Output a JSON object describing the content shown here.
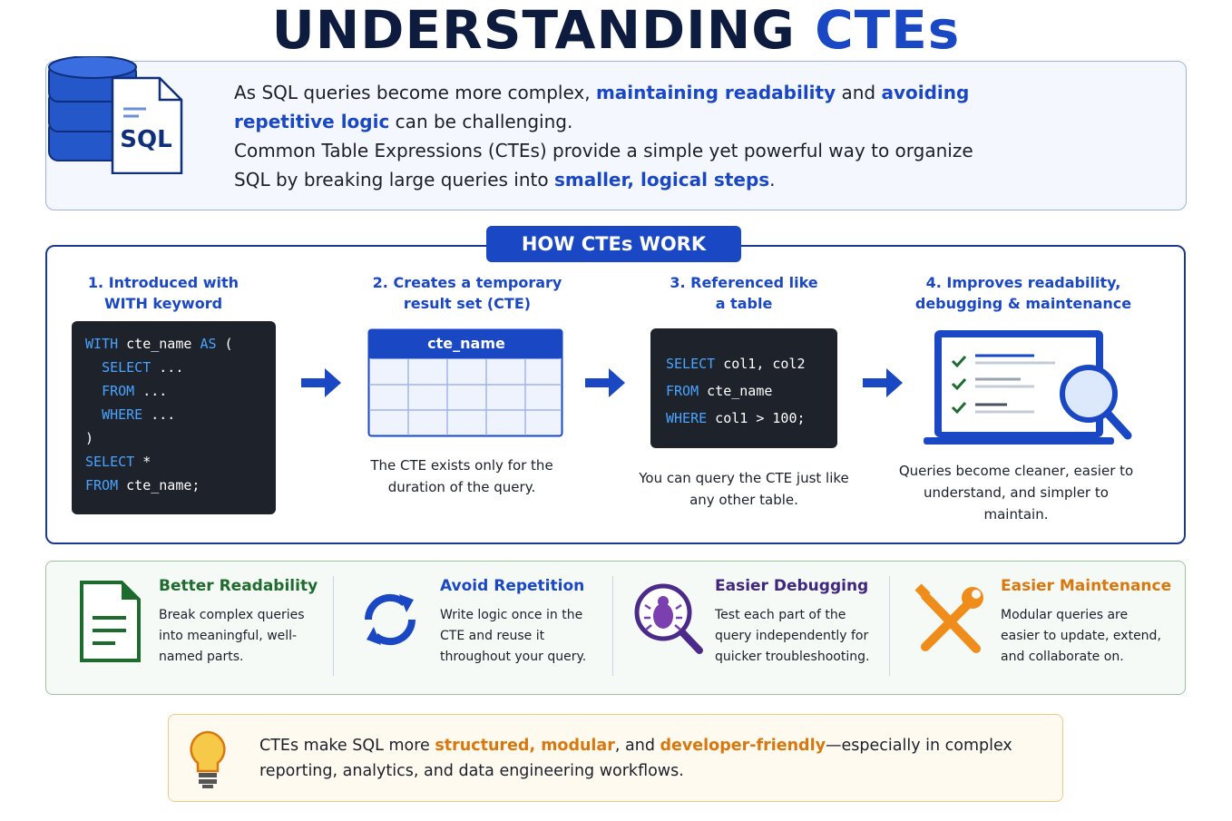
{
  "title": {
    "main": "UNDERSTANDING",
    "accent": "CTEs"
  },
  "intro": {
    "icon_label": "SQL",
    "paragraphs": [
      [
        {
          "text": "As SQL queries become more complex, ",
          "em": false
        },
        {
          "text": "maintaining readability",
          "em": true
        },
        {
          "text": " and ",
          "em": false
        },
        {
          "text": "avoiding repetitive logic",
          "em": true
        },
        {
          "text": " can be challenging.",
          "em": false
        }
      ],
      [
        {
          "text": "Common Table Expressions (CTEs) provide a simple yet powerful way to organize SQL by breaking large queries into ",
          "em": false
        },
        {
          "text": "smaller, logical steps",
          "em": true
        },
        {
          "text": ".",
          "em": false
        }
      ]
    ]
  },
  "how": {
    "badge": "HOW CTEs WORK",
    "steps": [
      {
        "heading": [
          "1. Introduced with",
          "WITH keyword"
        ],
        "code": [
          [
            {
              "text": "WITH",
              "kw": true
            },
            {
              "text": " cte_name ",
              "kw": false
            },
            {
              "text": "AS",
              "kw": true
            },
            {
              "text": " (",
              "kw": false
            }
          ],
          [
            {
              "text": "  ",
              "kw": false
            },
            {
              "text": "SELECT",
              "kw": true
            },
            {
              "text": " ...",
              "kw": false
            }
          ],
          [
            {
              "text": "  ",
              "kw": false
            },
            {
              "text": "FROM",
              "kw": true
            },
            {
              "text": " ...",
              "kw": false
            }
          ],
          [
            {
              "text": "  ",
              "kw": false
            },
            {
              "text": "WHERE",
              "kw": true
            },
            {
              "text": " ...",
              "kw": false
            }
          ],
          [
            {
              "text": ")",
              "kw": false
            }
          ],
          [
            {
              "text": "SELECT",
              "kw": true
            },
            {
              "text": " *",
              "kw": false
            }
          ],
          [
            {
              "text": "FROM",
              "kw": true
            },
            {
              "text": " cte_name;",
              "kw": false
            }
          ]
        ]
      },
      {
        "heading": [
          "2. Creates a temporary",
          "result set (CTE)"
        ],
        "table_name": "cte_name",
        "caption": "The CTE exists only for the duration of the query."
      },
      {
        "heading": [
          "3. Referenced like",
          "a table"
        ],
        "code": [
          [
            {
              "text": "SELECT",
              "kw": true
            },
            {
              "text": " col1, col2",
              "kw": false
            }
          ],
          [
            {
              "text": "FROM",
              "kw": true
            },
            {
              "text": " cte_name",
              "kw": false
            }
          ],
          [
            {
              "text": "WHERE",
              "kw": true
            },
            {
              "text": " col1 > 100;",
              "kw": false
            }
          ]
        ],
        "caption": "You can query the CTE just like any other table."
      },
      {
        "heading": [
          "4. Improves readability,",
          "debugging & maintenance"
        ],
        "caption": "Queries become cleaner, easier to understand, and simpler to maintain."
      }
    ]
  },
  "benefits": [
    {
      "title": "Better Readability",
      "text": "Break complex queries into meaningful, well-named parts.",
      "color": "#1e6b2e"
    },
    {
      "title": "Avoid Repetition",
      "text": "Write logic once in the CTE and reuse it throughout your query.",
      "color": "#1a47c4"
    },
    {
      "title": "Easier Debugging",
      "text": "Test each part of the query independently for quicker troubleshooting.",
      "color": "#3f2680"
    },
    {
      "title": "Easier Maintenance",
      "text": "Modular queries are easier to update, extend, and collaborate on.",
      "color": "#d9770f"
    }
  ],
  "footer": [
    {
      "text": "CTEs make SQL more ",
      "em": false
    },
    {
      "text": "structured, modular",
      "em": true
    },
    {
      "text": ", and ",
      "em": false
    },
    {
      "text": "developer-friendly",
      "em": true
    },
    {
      "text": "—especially in complex reporting, analytics, and data engineering workflows.",
      "em": false
    }
  ]
}
